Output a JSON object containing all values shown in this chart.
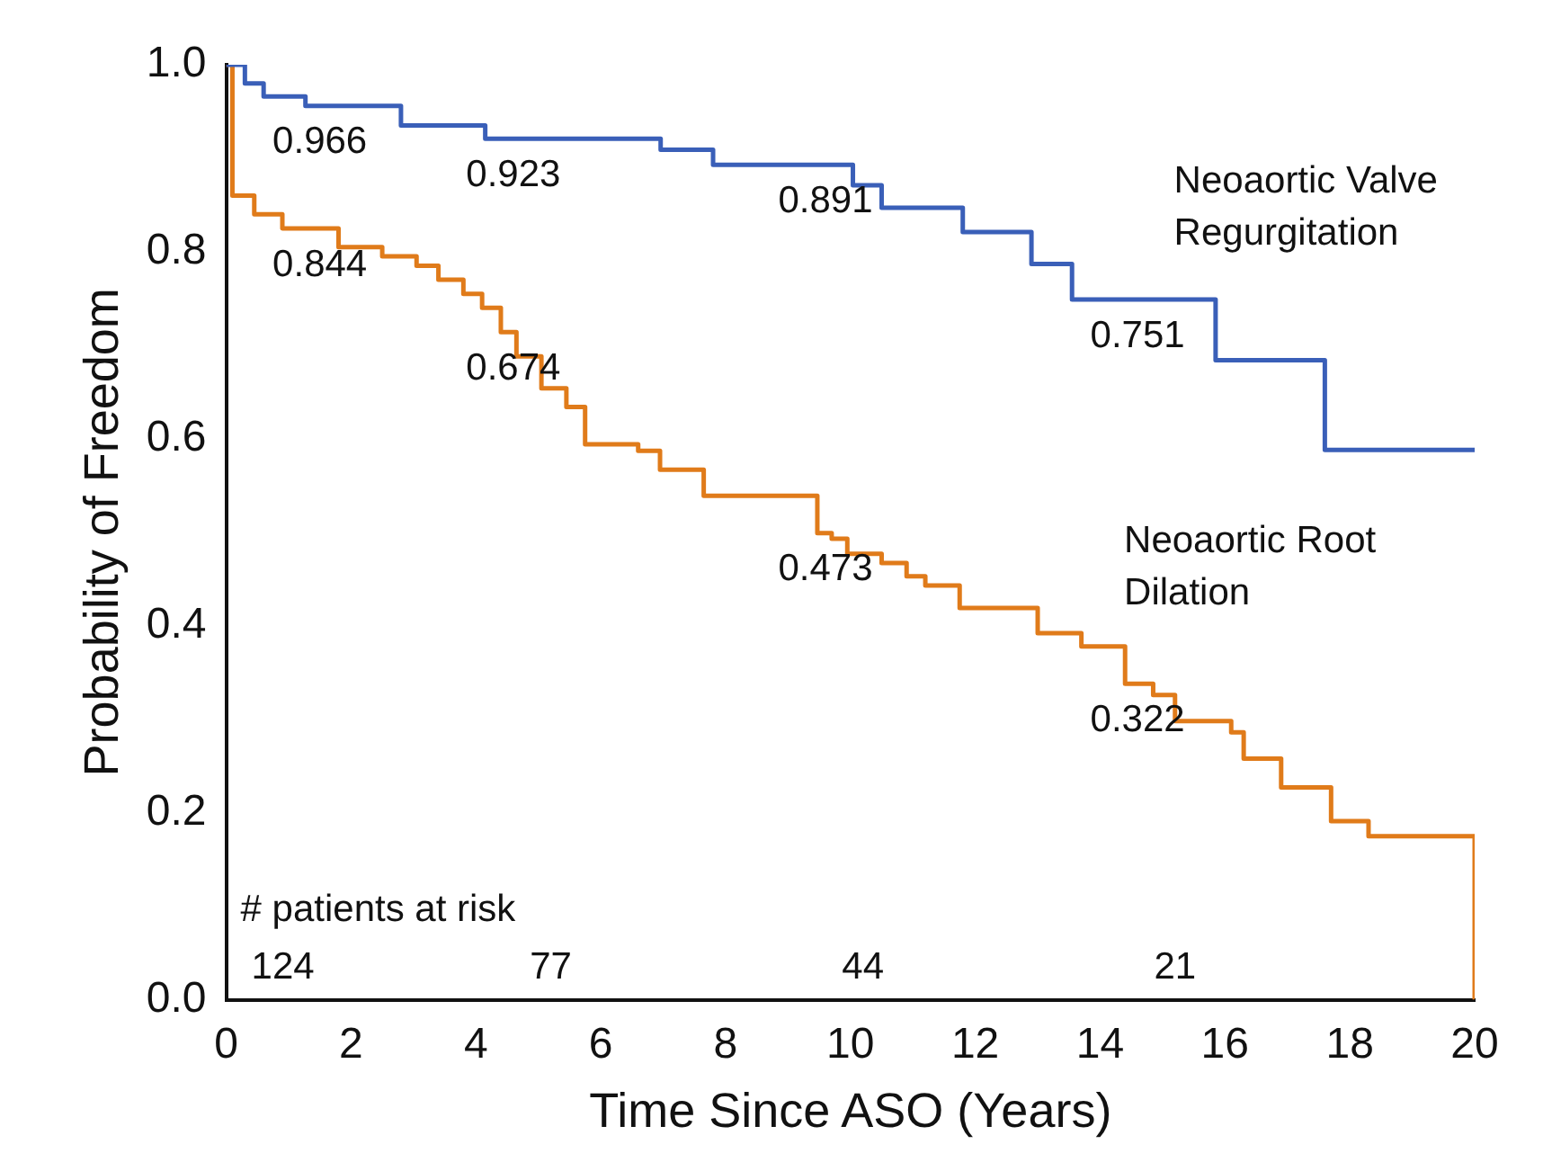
{
  "chart_data": {
    "type": "step",
    "xlabel": "Time Since ASO (Years)",
    "ylabel": "Probability of Freedom",
    "xlim": [
      0,
      20
    ],
    "xticks": [
      0,
      2,
      4,
      6,
      8,
      10,
      12,
      14,
      16,
      18,
      20
    ],
    "ylim": [
      0,
      1
    ],
    "yticks": [
      {
        "value": 0,
        "label": "0.0"
      },
      {
        "value": 0.2,
        "label": "0.2"
      },
      {
        "value": 0.4,
        "label": "0.4"
      },
      {
        "value": 0.6,
        "label": "0.6"
      },
      {
        "value": 0.8,
        "label": "0.8"
      },
      {
        "value": 1,
        "label": "1.0"
      }
    ],
    "grid": false,
    "legend": false,
    "series": [
      {
        "name": "Neoaortic Valve Regurgitation",
        "color": "#3a5fb8",
        "x": [
          0,
          0.3,
          0.6,
          1.27,
          2.8,
          4.15,
          6.96,
          7.8,
          10.04,
          10.5,
          11.8,
          12.9,
          13.55,
          15.85,
          17.6,
          20
        ],
        "values": [
          1,
          0.98,
          0.966,
          0.956,
          0.935,
          0.921,
          0.909,
          0.893,
          0.871,
          0.847,
          0.821,
          0.787,
          0.749,
          0.684,
          0.588,
          0.588
        ]
      },
      {
        "name": "Neoaortic Root Dilation",
        "color": "#e07b1a",
        "x": [
          0,
          0.1,
          0.45,
          0.9,
          1.8,
          2.5,
          3.05,
          3.4,
          3.8,
          4.1,
          4.4,
          4.65,
          5.05,
          5.45,
          5.75,
          6.6,
          6.95,
          7.65,
          9.47,
          9.7,
          9.95,
          10.5,
          10.9,
          11.2,
          11.75,
          13.0,
          13.7,
          14.4,
          14.85,
          15.2,
          16.1,
          16.3,
          16.9,
          17.7,
          18.3,
          20,
          20
        ],
        "values": [
          1,
          0.86,
          0.84,
          0.825,
          0.805,
          0.795,
          0.785,
          0.77,
          0.755,
          0.74,
          0.714,
          0.688,
          0.654,
          0.634,
          0.594,
          0.587,
          0.567,
          0.539,
          0.499,
          0.493,
          0.477,
          0.467,
          0.453,
          0.443,
          0.419,
          0.392,
          0.378,
          0.338,
          0.326,
          0.298,
          0.286,
          0.258,
          0.227,
          0.191,
          0.175,
          0.175,
          0
        ]
      }
    ],
    "annotations": [
      "# patients at risk",
      "124",
      "77",
      "44",
      "21",
      "0.966",
      "0.923",
      "0.891",
      "0.751",
      "0.844",
      "0.674",
      "0.473",
      "0.322"
    ]
  }
}
